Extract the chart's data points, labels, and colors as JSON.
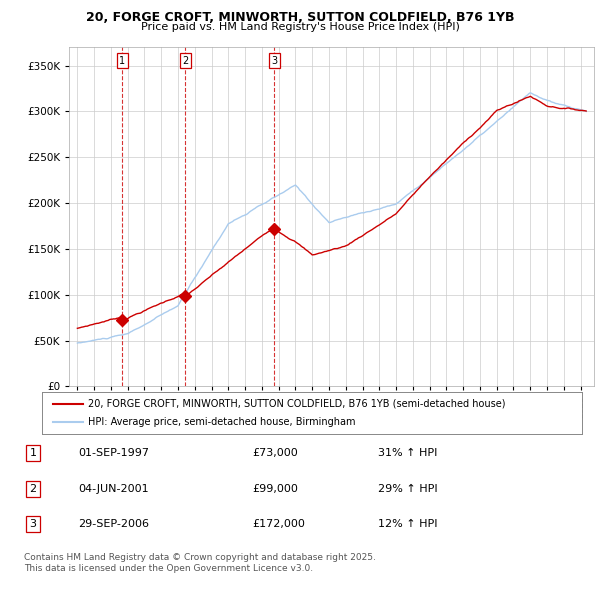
{
  "title_line1": "20, FORGE CROFT, MINWORTH, SUTTON COLDFIELD, B76 1YB",
  "title_line2": "Price paid vs. HM Land Registry's House Price Index (HPI)",
  "legend_label_red": "20, FORGE CROFT, MINWORTH, SUTTON COLDFIELD, B76 1YB (semi-detached house)",
  "legend_label_blue": "HPI: Average price, semi-detached house, Birmingham",
  "sale_dates": [
    "01-SEP-1997",
    "04-JUN-2001",
    "29-SEP-2006"
  ],
  "sale_prices": [
    73000,
    99000,
    172000
  ],
  "sale_hpi_pct": [
    "31% ↑ HPI",
    "29% ↑ HPI",
    "12% ↑ HPI"
  ],
  "sale_years": [
    1997.67,
    2001.42,
    2006.75
  ],
  "footnote": "Contains HM Land Registry data © Crown copyright and database right 2025.\nThis data is licensed under the Open Government Licence v3.0.",
  "line_color_red": "#cc0000",
  "line_color_blue": "#aaccee",
  "marker_color_red": "#cc0000",
  "background_color": "#ffffff",
  "grid_color": "#cccccc",
  "ylim": [
    0,
    370000
  ],
  "xlim_start": 1994.5,
  "xlim_end": 2025.8
}
